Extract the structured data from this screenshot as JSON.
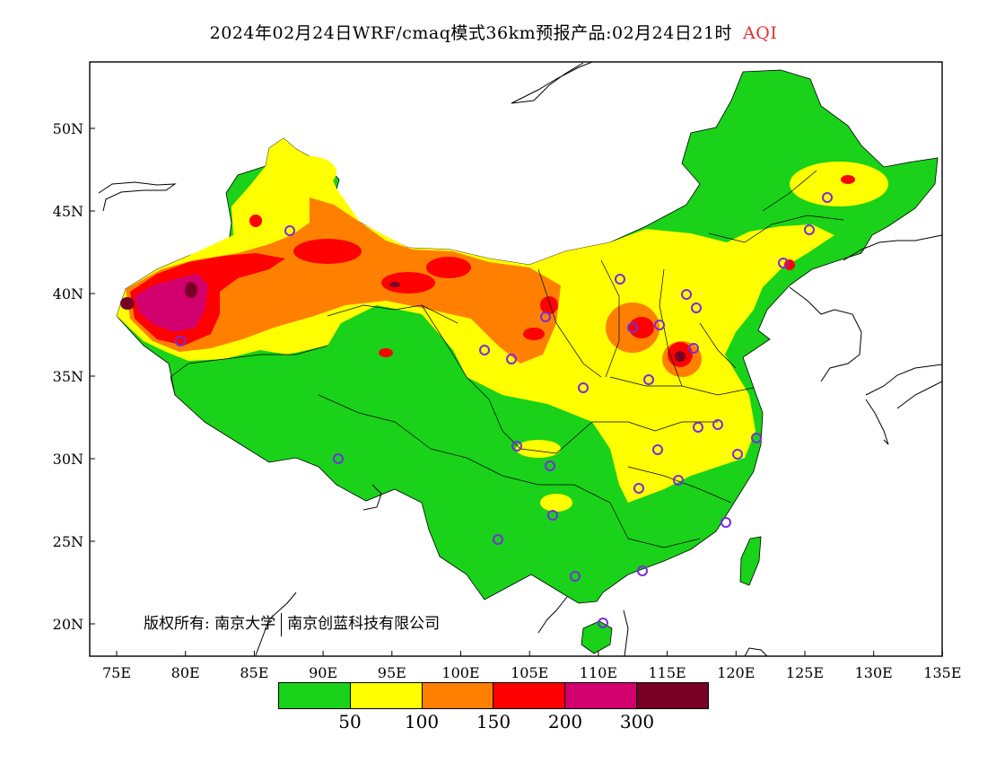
{
  "title": {
    "main": "2024年02月24日WRF/cmaq模式36km预报产品:02月24日21时",
    "product": "AQI"
  },
  "axes": {
    "lat_labels": [
      "50N",
      "45N",
      "40N",
      "35N",
      "30N",
      "25N",
      "20N"
    ],
    "lon_labels": [
      "75E",
      "80E",
      "85E",
      "90E",
      "95E",
      "100E",
      "105E",
      "110E",
      "115E",
      "120E",
      "125E",
      "130E",
      "135E"
    ]
  },
  "legend": {
    "colors": [
      "#19d219",
      "#ffff00",
      "#ff8000",
      "#ff0000",
      "#d2006e",
      "#780024"
    ],
    "labels": [
      "50",
      "100",
      "150",
      "200",
      "300"
    ]
  },
  "copyright": {
    "prefix": "版权所有:",
    "org1": "南京大学",
    "org2": "南京创蓝科技有限公司"
  },
  "colors": {
    "station_ring": "#7a2be0",
    "coast_line": "#000000"
  }
}
